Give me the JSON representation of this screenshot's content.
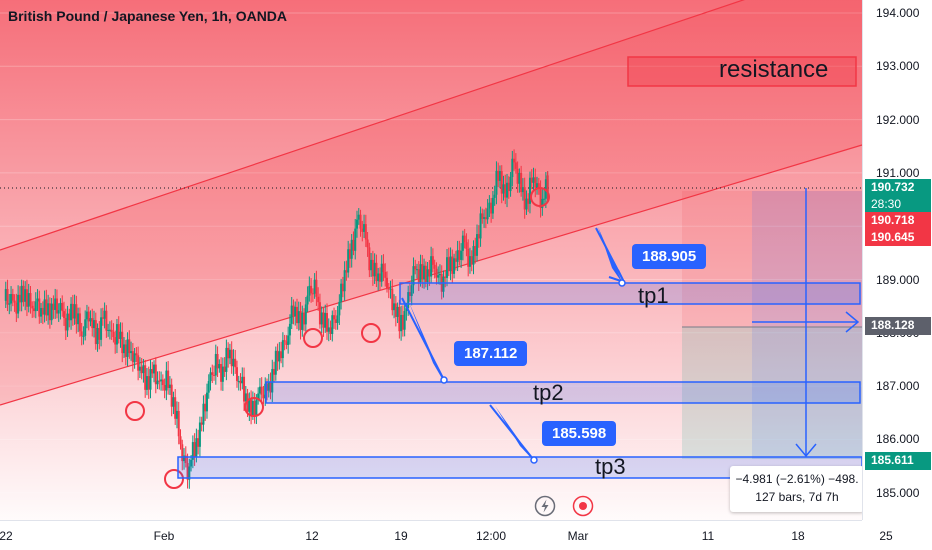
{
  "header": {
    "title": "British Pound / Japanese Yen, 1h, OANDA"
  },
  "price_axis": {
    "ticks": [
      "194.000",
      "193.000",
      "192.000",
      "191.000",
      "189.000",
      "188.000",
      "187.000",
      "186.000",
      "185.000"
    ]
  },
  "time_axis": {
    "ticks": [
      "22",
      "Feb",
      "12",
      "19",
      "12:00",
      "Mar",
      "11",
      "18",
      "25"
    ]
  },
  "price_labels": {
    "last_price": "190.732",
    "countdown": "28:30",
    "ask": "190.718",
    "bid": "190.645",
    "stop_level": "188.128",
    "target_level": "185.611"
  },
  "annotations": {
    "resistance": "resistance",
    "tp1": {
      "label": "tp1",
      "price": "188.905"
    },
    "tp2": {
      "label": "tp2",
      "price": "187.112"
    },
    "tp3": {
      "label": "tp3",
      "price": "185.598"
    }
  },
  "measure": {
    "change": "−4.981 (−2.61%) −498.",
    "bars": "127 bars, 7d 7h"
  },
  "toolbar": {
    "replay_icon": "lightning-icon",
    "record_icon": "record-icon"
  },
  "colors": {
    "up": "#089981",
    "down": "#f23645",
    "channel": "#f23645",
    "zone": "#2962ff",
    "accent": "#2962ff"
  },
  "chart_data": {
    "type": "candlestick",
    "symbol": "GBPJPY",
    "interval": "1h",
    "ylim": [
      184.9,
      194.3
    ],
    "last_price": 190.732,
    "targets": [
      188.905,
      187.112,
      185.598
    ],
    "series": [
      {
        "t": 0,
        "c": 188.55
      },
      {
        "t": 2,
        "c": 188.65
      },
      {
        "t": 4,
        "c": 188.5
      },
      {
        "t": 6,
        "c": 188.75
      },
      {
        "t": 8,
        "c": 188.6
      },
      {
        "t": 10,
        "c": 188.4
      },
      {
        "t": 12,
        "c": 188.55
      },
      {
        "t": 14,
        "c": 188.35
      },
      {
        "t": 16,
        "c": 188.45
      },
      {
        "t": 18,
        "c": 188.2
      },
      {
        "t": 20,
        "c": 188.4
      },
      {
        "t": 22,
        "c": 188.1
      },
      {
        "t": 24,
        "c": 188.3
      },
      {
        "t": 26,
        "c": 188.0
      },
      {
        "t": 28,
        "c": 188.25
      },
      {
        "t": 30,
        "c": 187.9
      },
      {
        "t": 32,
        "c": 188.05
      },
      {
        "t": 34,
        "c": 187.6
      },
      {
        "t": 36,
        "c": 187.8
      },
      {
        "t": 38,
        "c": 187.4
      },
      {
        "t": 40,
        "c": 187.1
      },
      {
        "t": 42,
        "c": 187.3
      },
      {
        "t": 44,
        "c": 186.9
      },
      {
        "t": 46,
        "c": 187.2
      },
      {
        "t": 48,
        "c": 186.6
      },
      {
        "t": 50,
        "c": 186.0
      },
      {
        "t": 52,
        "c": 185.4
      },
      {
        "t": 54,
        "c": 185.8
      },
      {
        "t": 56,
        "c": 186.4
      },
      {
        "t": 58,
        "c": 186.9
      },
      {
        "t": 60,
        "c": 187.5
      },
      {
        "t": 62,
        "c": 187.2
      },
      {
        "t": 64,
        "c": 187.7
      },
      {
        "t": 66,
        "c": 187.3
      },
      {
        "t": 68,
        "c": 186.8
      },
      {
        "t": 70,
        "c": 186.6
      },
      {
        "t": 72,
        "c": 186.7
      },
      {
        "t": 74,
        "c": 186.9
      },
      {
        "t": 76,
        "c": 187.2
      },
      {
        "t": 78,
        "c": 187.6
      },
      {
        "t": 80,
        "c": 188.0
      },
      {
        "t": 82,
        "c": 188.4
      },
      {
        "t": 84,
        "c": 188.2
      },
      {
        "t": 86,
        "c": 188.6
      },
      {
        "t": 88,
        "c": 188.8
      },
      {
        "t": 90,
        "c": 188.3
      },
      {
        "t": 92,
        "c": 188.0
      },
      {
        "t": 94,
        "c": 188.4
      },
      {
        "t": 96,
        "c": 188.9
      },
      {
        "t": 98,
        "c": 189.5
      },
      {
        "t": 100,
        "c": 190.1
      },
      {
        "t": 102,
        "c": 189.8
      },
      {
        "t": 104,
        "c": 189.3
      },
      {
        "t": 106,
        "c": 189.0
      },
      {
        "t": 108,
        "c": 189.2
      },
      {
        "t": 110,
        "c": 188.6
      },
      {
        "t": 112,
        "c": 188.1
      },
      {
        "t": 114,
        "c": 188.5
      },
      {
        "t": 116,
        "c": 189.0
      },
      {
        "t": 118,
        "c": 189.2
      },
      {
        "t": 120,
        "c": 189.1
      },
      {
        "t": 122,
        "c": 189.3
      },
      {
        "t": 124,
        "c": 189.0
      },
      {
        "t": 126,
        "c": 189.2
      },
      {
        "t": 128,
        "c": 189.4
      },
      {
        "t": 130,
        "c": 189.6
      },
      {
        "t": 132,
        "c": 189.3
      },
      {
        "t": 134,
        "c": 189.8
      },
      {
        "t": 136,
        "c": 190.2
      },
      {
        "t": 138,
        "c": 190.5
      },
      {
        "t": 140,
        "c": 190.9
      },
      {
        "t": 142,
        "c": 190.6
      },
      {
        "t": 144,
        "c": 191.1
      },
      {
        "t": 146,
        "c": 190.8
      },
      {
        "t": 148,
        "c": 190.5
      },
      {
        "t": 150,
        "c": 190.9
      },
      {
        "t": 152,
        "c": 190.6
      },
      {
        "t": 154,
        "c": 190.732
      }
    ],
    "marked_lows": [
      {
        "t": 40,
        "price": 186.5
      },
      {
        "t": 52,
        "price": 185.3
      },
      {
        "t": 75,
        "price": 186.6
      },
      {
        "t": 96,
        "price": 187.9
      },
      {
        "t": 112,
        "price": 188.0
      },
      {
        "t": 153,
        "price": 190.6
      }
    ]
  }
}
